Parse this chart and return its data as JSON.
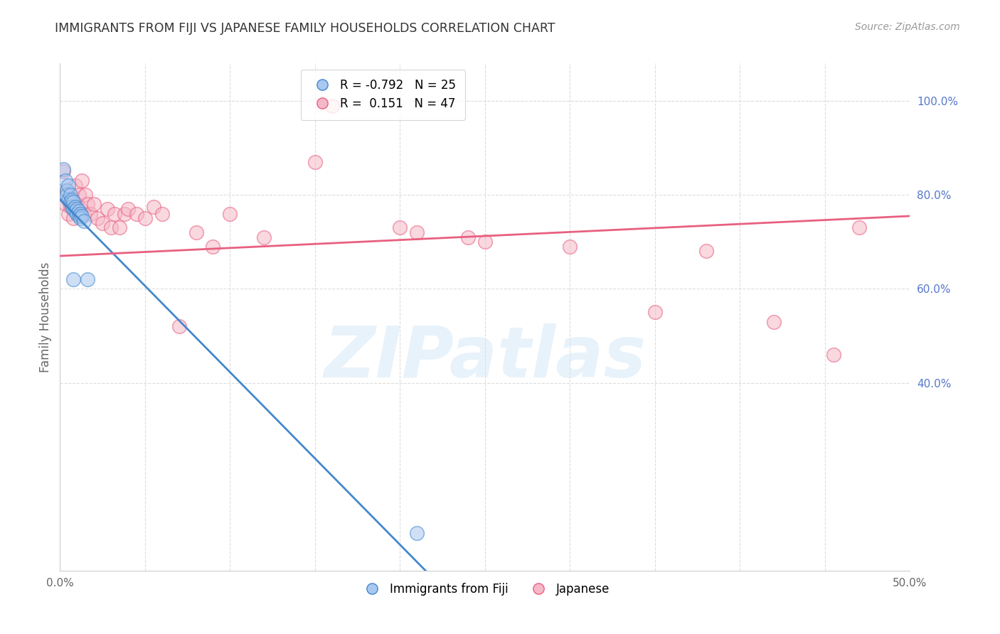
{
  "title": "IMMIGRANTS FROM FIJI VS JAPANESE FAMILY HOUSEHOLDS CORRELATION CHART",
  "source": "Source: ZipAtlas.com",
  "ylabel_left": "Family Households",
  "legend_label1": "Immigrants from Fiji",
  "legend_label2": "Japanese",
  "r1": -0.792,
  "n1": 25,
  "r2": 0.151,
  "n2": 47,
  "color_blue": "#a8c8f0",
  "color_pink": "#f5b8c8",
  "line_color_blue": "#4488cc",
  "line_color_pink": "#e86080",
  "xlim": [
    0.0,
    0.5
  ],
  "ylim": [
    0.0,
    1.08
  ],
  "right_yticks": [
    0.4,
    0.6,
    0.8,
    1.0
  ],
  "right_yticklabels": [
    "40.0%",
    "60.0%",
    "80.0%",
    "100.0%"
  ],
  "background_color": "#ffffff",
  "grid_color": "#dddddd",
  "watermark_text": "ZIPatlas",
  "fiji_x": [
    0.002,
    0.003,
    0.004,
    0.004,
    0.005,
    0.005,
    0.006,
    0.006,
    0.007,
    0.007,
    0.008,
    0.008,
    0.009,
    0.009,
    0.01,
    0.01,
    0.011,
    0.011,
    0.012,
    0.012,
    0.013,
    0.014,
    0.016,
    0.21,
    0.008
  ],
  "fiji_y": [
    0.855,
    0.83,
    0.81,
    0.8,
    0.82,
    0.79,
    0.8,
    0.785,
    0.79,
    0.775,
    0.785,
    0.77,
    0.775,
    0.765,
    0.77,
    0.76,
    0.765,
    0.755,
    0.76,
    0.75,
    0.755,
    0.745,
    0.62,
    0.08,
    0.62
  ],
  "japanese_x": [
    0.002,
    0.003,
    0.004,
    0.005,
    0.006,
    0.006,
    0.007,
    0.008,
    0.009,
    0.01,
    0.011,
    0.012,
    0.013,
    0.014,
    0.015,
    0.016,
    0.018,
    0.02,
    0.022,
    0.025,
    0.028,
    0.03,
    0.032,
    0.035,
    0.038,
    0.04,
    0.045,
    0.05,
    0.055,
    0.06,
    0.07,
    0.08,
    0.09,
    0.1,
    0.12,
    0.15,
    0.16,
    0.2,
    0.21,
    0.24,
    0.25,
    0.3,
    0.35,
    0.38,
    0.42,
    0.455,
    0.47
  ],
  "japanese_y": [
    0.85,
    0.78,
    0.81,
    0.76,
    0.79,
    0.775,
    0.78,
    0.75,
    0.82,
    0.78,
    0.8,
    0.77,
    0.83,
    0.76,
    0.8,
    0.78,
    0.76,
    0.78,
    0.75,
    0.74,
    0.77,
    0.73,
    0.76,
    0.73,
    0.76,
    0.77,
    0.76,
    0.75,
    0.775,
    0.76,
    0.52,
    0.72,
    0.69,
    0.76,
    0.71,
    0.87,
    0.99,
    0.73,
    0.72,
    0.71,
    0.7,
    0.69,
    0.55,
    0.68,
    0.53,
    0.46,
    0.73
  ],
  "line_blue_x0": 0.0,
  "line_blue_y0": 0.79,
  "line_blue_x1": 0.215,
  "line_blue_y1": 0.0,
  "line_pink_x0": 0.0,
  "line_pink_y0": 0.67,
  "line_pink_x1": 0.5,
  "line_pink_y1": 0.755
}
